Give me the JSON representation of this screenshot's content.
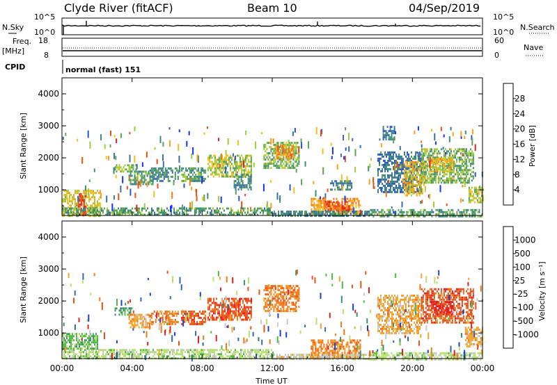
{
  "header": {
    "radar": "Clyde River (fitACF)",
    "beam": "Beam 10",
    "date": "04/Sep/2019"
  },
  "status_panels": {
    "nsky_label": "N.Sky",
    "nsky_ticks": [
      "10^5",
      "10^0"
    ],
    "nsearch_label": "N.Search",
    "nsearch_ticks": [
      "10^5",
      "10^0"
    ],
    "freq_label_1": "Freq.",
    "freq_label_2": "[MHz]",
    "freq_ticks": [
      "18",
      "8"
    ],
    "nave_label": "Nave",
    "nave_ticks": [
      "60",
      "0"
    ],
    "cpid_label": "CPID",
    "cpid_value": "normal (fast) 151"
  },
  "colors": {
    "power": [
      "#1433ff",
      "#2b56c6",
      "#3d6fa8",
      "#3c8f72",
      "#5fa35a",
      "#9fcc3a",
      "#f0c020",
      "#f5a21c",
      "#f07a1a",
      "#e85018",
      "#dd2222"
    ],
    "velocity": [
      "#e02222",
      "#e8531b",
      "#f07a1a",
      "#f3a42a",
      "#c8c8c8",
      "#b8e070",
      "#54b848",
      "#3c8f72",
      "#2f6aa8",
      "#1d3fcc"
    ]
  },
  "chart_data": [
    {
      "type": "heatmap",
      "title": "Power",
      "ylabel": "Slant Range [km]",
      "xlabel": "",
      "x_ticks": [
        "00:00",
        "04:00",
        "08:00",
        "12:00",
        "16:00",
        "20:00",
        "00:00"
      ],
      "y_ticks": [
        1000,
        2000,
        3000,
        4000
      ],
      "ylim": [
        200,
        4500
      ],
      "colorbar": {
        "label": "Power [dB]",
        "ticks": [
          "4",
          "8",
          "12",
          "16",
          "20",
          "24",
          "28"
        ],
        "range": [
          0,
          32
        ]
      },
      "regions": [
        {
          "t0": 0.0,
          "t1": 2.2,
          "r0": 200,
          "r1": 1000,
          "v": 18
        },
        {
          "t0": 0.9,
          "t1": 1.3,
          "r0": 200,
          "r1": 900,
          "v": 30
        },
        {
          "t0": 0.0,
          "t1": 12.0,
          "r0": 200,
          "r1": 450,
          "v": 12
        },
        {
          "t0": 3.0,
          "t1": 4.2,
          "r0": 1550,
          "r1": 1800,
          "v": 14
        },
        {
          "t0": 3.8,
          "t1": 5.2,
          "r0": 1200,
          "r1": 1600,
          "v": 12
        },
        {
          "t0": 5.0,
          "t1": 6.6,
          "r0": 1300,
          "r1": 1700,
          "v": 10
        },
        {
          "t0": 6.8,
          "t1": 8.2,
          "r0": 1300,
          "r1": 1700,
          "v": 12
        },
        {
          "t0": 8.3,
          "t1": 10.8,
          "r0": 1400,
          "r1": 2100,
          "v": 16
        },
        {
          "t0": 9.8,
          "t1": 10.8,
          "r0": 1000,
          "r1": 1500,
          "v": 10
        },
        {
          "t0": 11.5,
          "t1": 13.5,
          "r0": 1700,
          "r1": 2500,
          "v": 14
        },
        {
          "t0": 12.2,
          "t1": 13.2,
          "r0": 2000,
          "r1": 2400,
          "v": 22
        },
        {
          "t0": 14.2,
          "t1": 17.0,
          "r0": 250,
          "r1": 750,
          "v": 22
        },
        {
          "t0": 15.0,
          "t1": 16.4,
          "r0": 350,
          "r1": 650,
          "v": 28
        },
        {
          "t0": 12.0,
          "t1": 17.5,
          "r0": 200,
          "r1": 350,
          "v": 10
        },
        {
          "t0": 15.3,
          "t1": 16.5,
          "r0": 1000,
          "r1": 1300,
          "v": 10
        },
        {
          "t0": 17.5,
          "t1": 24.0,
          "r0": 200,
          "r1": 400,
          "v": 12
        },
        {
          "t0": 18.0,
          "t1": 20.5,
          "r0": 900,
          "r1": 2200,
          "v": 8
        },
        {
          "t0": 19.5,
          "t1": 20.7,
          "r0": 800,
          "r1": 1900,
          "v": 20
        },
        {
          "t0": 20.5,
          "t1": 23.5,
          "r0": 1200,
          "r1": 2300,
          "v": 14
        },
        {
          "t0": 21.0,
          "t1": 22.3,
          "r0": 1600,
          "r1": 2000,
          "v": 20
        },
        {
          "t0": 18.3,
          "t1": 19.0,
          "r0": 2600,
          "r1": 3000,
          "v": 8
        },
        {
          "t0": 23.2,
          "t1": 24.0,
          "r0": 600,
          "r1": 1100,
          "v": 16
        }
      ]
    },
    {
      "type": "heatmap",
      "title": "Velocity",
      "ylabel": "Slant Range [km]",
      "xlabel": "Time UT",
      "x_ticks": [
        "00:00",
        "04:00",
        "08:00",
        "12:00",
        "16:00",
        "20:00",
        "00:00"
      ],
      "y_ticks": [
        1000,
        2000,
        3000,
        4000
      ],
      "ylim": [
        200,
        4500
      ],
      "colorbar": {
        "label": "Velocity [m s⁻¹]",
        "ticks": [
          "-1000",
          "-500",
          "-100",
          "-25",
          "25",
          "100",
          "500",
          "1000"
        ]
      },
      "regions": [
        {
          "t0": 0.0,
          "t1": 12.0,
          "r0": 200,
          "r1": 500,
          "v": 5
        },
        {
          "t0": 0.0,
          "t1": 2.0,
          "r0": 500,
          "r1": 1000,
          "v": 6
        },
        {
          "t0": 3.0,
          "t1": 4.0,
          "r0": 1550,
          "r1": 1800,
          "v": 7
        },
        {
          "t0": 3.8,
          "t1": 5.0,
          "r0": 1200,
          "r1": 1600,
          "v": 3
        },
        {
          "t0": 5.0,
          "t1": 6.6,
          "r0": 1300,
          "r1": 1700,
          "v": 2
        },
        {
          "t0": 6.8,
          "t1": 8.2,
          "r0": 1300,
          "r1": 1700,
          "v": 1
        },
        {
          "t0": 8.3,
          "t1": 10.8,
          "r0": 1400,
          "r1": 2100,
          "v": 1
        },
        {
          "t0": 11.5,
          "t1": 13.5,
          "r0": 1700,
          "r1": 2500,
          "v": 2
        },
        {
          "t0": 14.2,
          "t1": 17.0,
          "r0": 250,
          "r1": 800,
          "v": 2
        },
        {
          "t0": 12.0,
          "t1": 17.5,
          "r0": 200,
          "r1": 350,
          "v": 4
        },
        {
          "t0": 18.0,
          "t1": 20.5,
          "r0": 1000,
          "r1": 2200,
          "v": 3
        },
        {
          "t0": 20.5,
          "t1": 23.5,
          "r0": 1300,
          "r1": 2400,
          "v": 1
        },
        {
          "t0": 21.0,
          "t1": 22.3,
          "r0": 1600,
          "r1": 2000,
          "v": 0
        },
        {
          "t0": 17.5,
          "t1": 24.0,
          "r0": 200,
          "r1": 400,
          "v": 5
        },
        {
          "t0": 23.0,
          "t1": 24.0,
          "r0": 600,
          "r1": 1200,
          "v": 3
        }
      ]
    }
  ]
}
